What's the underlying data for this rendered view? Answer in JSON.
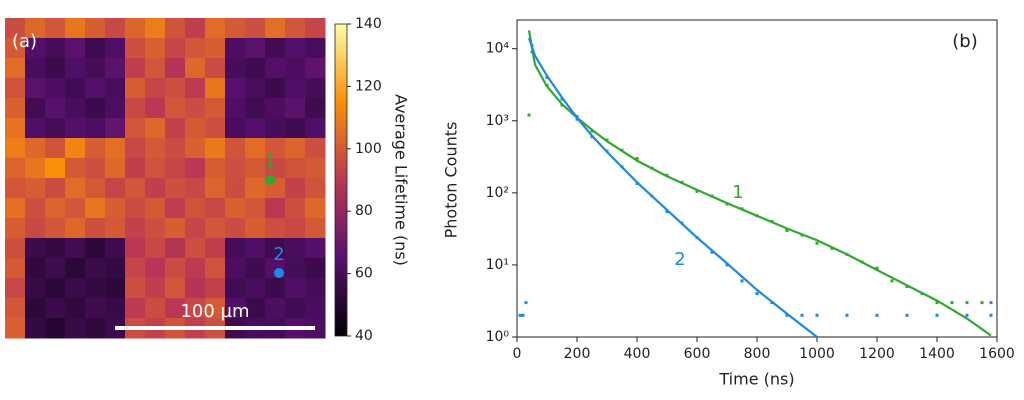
{
  "chart_data": [
    {
      "type": "heatmap",
      "title": "(a)",
      "colormap": "inferno",
      "clim": [
        40,
        140
      ],
      "colorbar_ticks": [
        40,
        60,
        80,
        100,
        120,
        140
      ],
      "colorbar_label": "Average Lifetime (ns)",
      "scale_bar_label": "100 µm",
      "annotations": [
        {
          "text": "1",
          "color": "#2eaa2e"
        },
        {
          "text": "2",
          "color": "#1e88e5"
        }
      ],
      "z": [
        [
          96,
          104,
          99,
          108,
          101,
          95,
          103,
          110,
          98,
          92,
          105,
          100,
          97,
          106,
          99,
          94
        ],
        [
          100,
          64,
          60,
          66,
          58,
          63,
          97,
          102,
          94,
          99,
          101,
          62,
          66,
          59,
          64,
          61
        ],
        [
          105,
          61,
          57,
          63,
          60,
          66,
          92,
          99,
          88,
          104,
          96,
          60,
          58,
          64,
          62,
          67
        ],
        [
          98,
          66,
          62,
          59,
          64,
          61,
          101,
          94,
          97,
          91,
          108,
          65,
          61,
          57,
          63,
          60
        ],
        [
          102,
          59,
          65,
          61,
          57,
          62,
          95,
          90,
          99,
          96,
          100,
          63,
          59,
          62,
          66,
          58
        ],
        [
          107,
          63,
          60,
          64,
          62,
          68,
          99,
          104,
          93,
          100,
          97,
          61,
          64,
          60,
          58,
          63
        ],
        [
          110,
          104,
          98,
          112,
          101,
          106,
          95,
          100,
          96,
          102,
          109,
          98,
          105,
          99,
          103,
          97
        ],
        [
          103,
          108,
          115,
          100,
          97,
          104,
          92,
          98,
          94,
          90,
          101,
          97,
          100,
          95,
          98,
          100
        ],
        [
          99,
          101,
          96,
          105,
          100,
          94,
          99,
          92,
          97,
          95,
          103,
          96,
          104,
          101,
          93,
          98
        ],
        [
          106,
          97,
          103,
          99,
          108,
          101,
          96,
          100,
          92,
          98,
          95,
          102,
          99,
          90,
          97,
          104
        ],
        [
          101,
          95,
          99,
          104,
          97,
          100,
          93,
          97,
          101,
          94,
          99,
          96,
          101,
          97,
          95,
          100
        ],
        [
          97,
          57,
          55,
          59,
          53,
          58,
          90,
          95,
          88,
          97,
          92,
          60,
          63,
          58,
          61,
          64
        ],
        [
          100,
          54,
          58,
          52,
          57,
          55,
          94,
          89,
          96,
          91,
          98,
          62,
          58,
          64,
          60,
          57
        ],
        [
          95,
          56,
          52,
          57,
          55,
          53,
          97,
          92,
          99,
          88,
          93,
          59,
          61,
          57,
          63,
          60
        ],
        [
          99,
          53,
          57,
          54,
          58,
          56,
          91,
          96,
          90,
          95,
          100,
          63,
          57,
          62,
          59,
          61
        ],
        [
          102,
          55,
          51,
          56,
          54,
          57,
          96,
          93,
          98,
          92,
          97,
          58,
          61,
          60,
          64,
          62
        ]
      ]
    },
    {
      "type": "line",
      "title": "(b)",
      "x_label": "Time (ns)",
      "y_label": "Photon Counts",
      "log_y": true,
      "xlim": [
        0,
        1600
      ],
      "ylim": [
        1,
        25000
      ],
      "xticks": [
        0,
        200,
        400,
        600,
        800,
        1000,
        1200,
        1400,
        1600
      ],
      "yticks": [
        {
          "value": 1,
          "label": "10⁰"
        },
        {
          "value": 10,
          "label": "10¹"
        },
        {
          "value": 100,
          "label": "10²"
        },
        {
          "value": 1000,
          "label": "10³"
        },
        {
          "value": 10000,
          "label": "10⁴"
        }
      ],
      "annotations": [
        {
          "text": "1",
          "color": "#2eaa2e"
        },
        {
          "text": "2",
          "color": "#1e88e5"
        }
      ],
      "series": [
        {
          "name": "1",
          "kind": "scatter",
          "color": "#2eaa2e",
          "x": [
            40,
            50,
            100,
            150,
            200,
            250,
            300,
            350,
            400,
            450,
            500,
            550,
            600,
            650,
            700,
            750,
            800,
            850,
            900,
            950,
            1000,
            1050,
            1100,
            1150,
            1200,
            1250,
            1300,
            1350,
            1400,
            1450,
            1500,
            1550
          ],
          "values": [
            1200,
            9000,
            3100,
            1650,
            1150,
            720,
            540,
            390,
            300,
            220,
            175,
            140,
            105,
            90,
            70,
            60,
            48,
            40,
            30,
            26,
            20,
            17,
            14,
            11,
            9,
            6,
            5,
            4,
            3,
            3,
            3,
            3
          ]
        },
        {
          "name": "2",
          "kind": "scatter",
          "color": "#1e88e5",
          "x": [
            10,
            20,
            30,
            50,
            100,
            150,
            200,
            250,
            300,
            350,
            400,
            450,
            500,
            550,
            600,
            650,
            700,
            750,
            800,
            850,
            900,
            950,
            1000,
            1100,
            1200,
            1300,
            1400,
            1500,
            1580,
            1580
          ],
          "values": [
            2,
            2,
            3,
            11000,
            4000,
            2000,
            1050,
            600,
            380,
            230,
            135,
            90,
            55,
            38,
            24,
            15,
            10,
            6,
            4,
            3,
            2,
            2,
            2,
            2,
            2,
            2,
            2,
            2,
            2,
            3
          ]
        },
        {
          "name": "1",
          "kind": "line",
          "color": "#2eaa2e",
          "x": [
            40,
            60,
            100,
            150,
            200,
            250,
            300,
            400,
            500,
            600,
            700,
            800,
            900,
            1000,
            1100,
            1200,
            1300,
            1400,
            1500,
            1580
          ],
          "values": [
            18000,
            6000,
            3000,
            1700,
            1100,
            750,
            520,
            280,
            170,
            110,
            72,
            48,
            32,
            22,
            14,
            8.5,
            5.2,
            3.2,
            1.8,
            1.05
          ]
        },
        {
          "name": "2",
          "kind": "line",
          "color": "#1e88e5",
          "x": [
            40,
            60,
            100,
            150,
            200,
            250,
            300,
            400,
            500,
            600,
            700,
            800,
            900,
            1000
          ],
          "values": [
            14000,
            8000,
            4200,
            2100,
            1100,
            620,
            370,
            140,
            58,
            24,
            10.5,
            4.5,
            2.1,
            1.0
          ]
        }
      ]
    }
  ]
}
